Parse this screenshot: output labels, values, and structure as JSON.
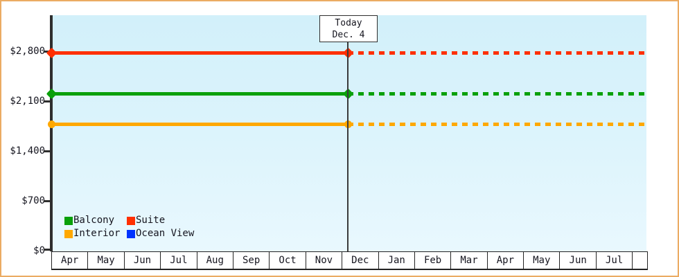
{
  "chart_data": {
    "type": "line",
    "description": "Cruise cabin price history/forecast chart: constant price lines per cabin category, solid before today, dashed projection after today",
    "categories": [
      "Apr",
      "May",
      "Jun",
      "Jul",
      "Aug",
      "Sep",
      "Oct",
      "Nov",
      "Dec",
      "Jan",
      "Feb",
      "Mar",
      "Apr",
      "May",
      "Jun",
      "Jul"
    ],
    "series": [
      {
        "name": "Balcony",
        "color": "#0aa00a",
        "value": 2200,
        "marker": "diamond"
      },
      {
        "name": "Suite",
        "color": "#ff2f00",
        "value": 2780,
        "marker": "diamond"
      },
      {
        "name": "Interior",
        "color": "#ffa800",
        "value": 1770,
        "marker": "circle"
      },
      {
        "name": "Ocean View",
        "color": "#0033ff",
        "value": null,
        "marker": "square"
      }
    ],
    "yticks": [
      {
        "value": 0,
        "label": "$0"
      },
      {
        "value": 700,
        "label": "$700"
      },
      {
        "value": 1400,
        "label": "$1,400"
      },
      {
        "value": 2100,
        "label": "$2,100"
      },
      {
        "value": 2800,
        "label": "$2,800"
      }
    ],
    "ylim": [
      0,
      2800
    ],
    "xlabel": "",
    "ylabel": "",
    "title": "",
    "grid": false,
    "legend_position": "bottom-left",
    "annotation": {
      "line1": "Today",
      "line2": "Dec. 4",
      "category": "Dec",
      "day": 4
    }
  },
  "colors": {
    "plot_bg_top": "#d2f0fa",
    "plot_bg_bottom": "#e9f8fe",
    "frame_border": "#ebab63",
    "axis": "#2e2e2e",
    "text": "#15151f",
    "today_line": "#3a3a3a"
  }
}
